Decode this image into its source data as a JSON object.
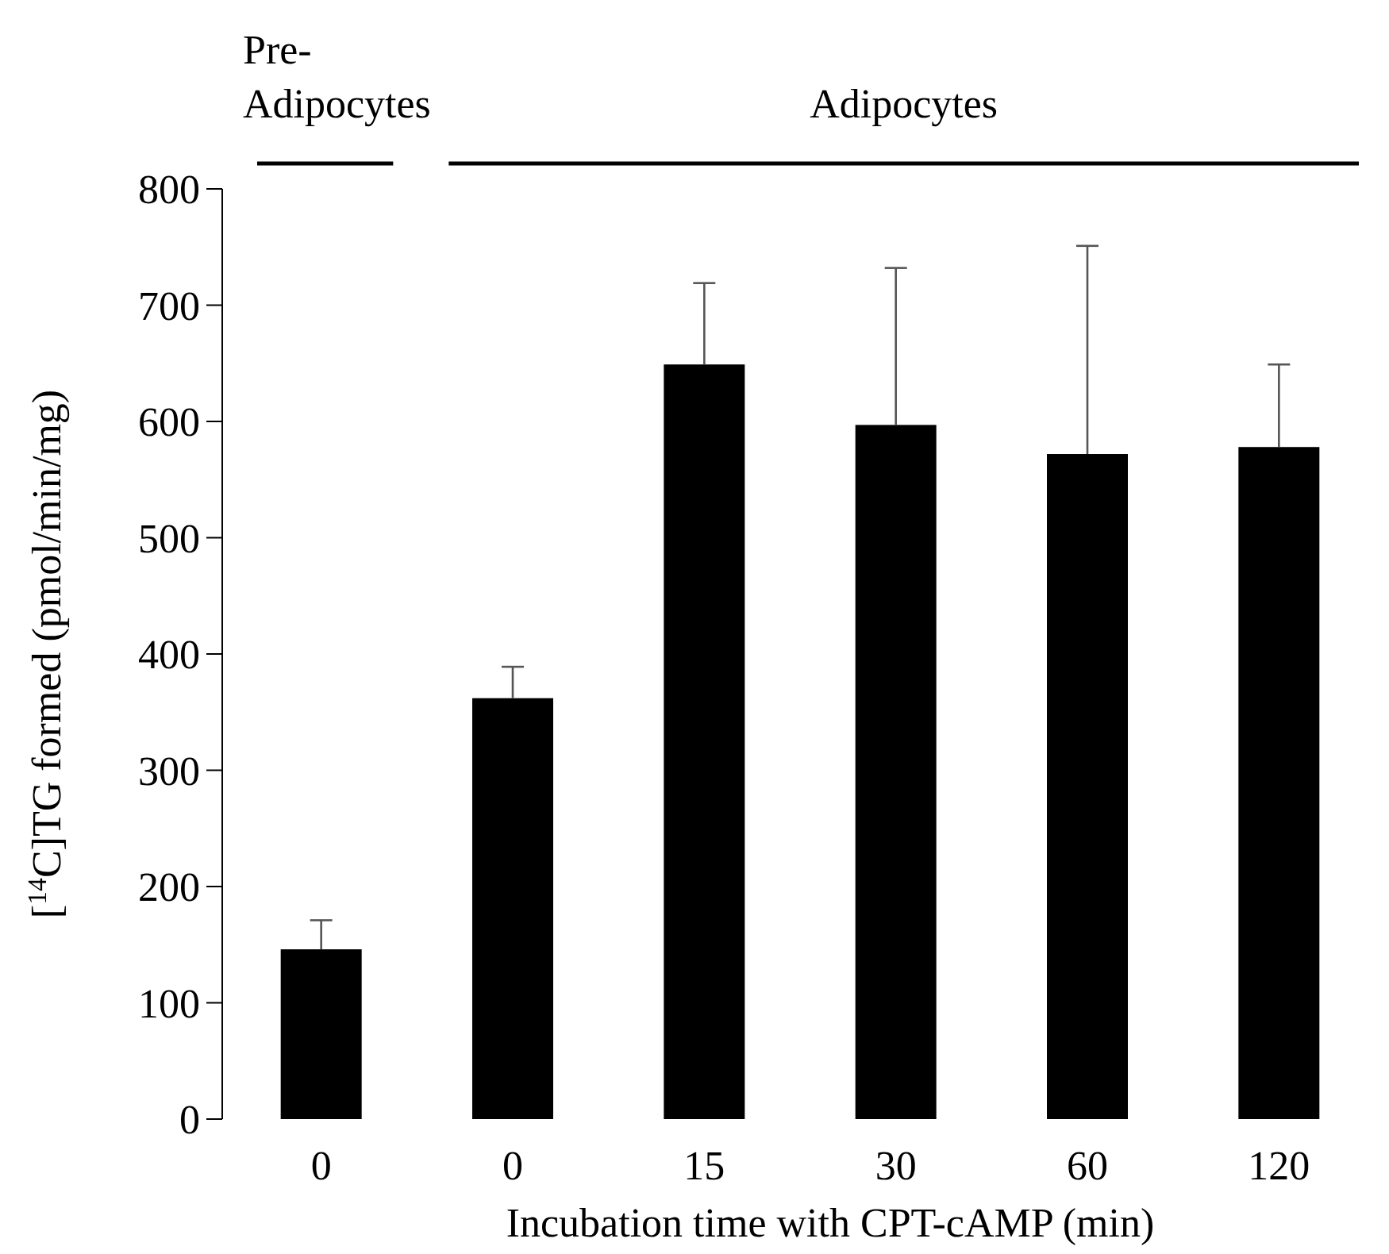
{
  "chart_data": {
    "type": "bar",
    "categories": [
      "0",
      "0",
      "15",
      "30",
      "60",
      "120"
    ],
    "values": [
      146,
      362,
      649,
      597,
      572,
      578
    ],
    "errors": [
      [
        146,
        171
      ],
      [
        362,
        389
      ],
      [
        649,
        719
      ],
      [
        597,
        732
      ],
      [
        572,
        751
      ],
      [
        578,
        649
      ]
    ],
    "color": "#000000",
    "xlabel": "Incubation time with CPT-cAMP (min)",
    "ylabel": "[$^{14}$C]TG formed (pmol/min/mg)",
    "ylim": [
      0,
      800
    ],
    "yticks": [
      0,
      100,
      200,
      300,
      400,
      500,
      600,
      700,
      800
    ],
    "annotations": [
      "Pre-Adipocytes",
      "Adipocytes"
    ],
    "grid": false
  }
}
